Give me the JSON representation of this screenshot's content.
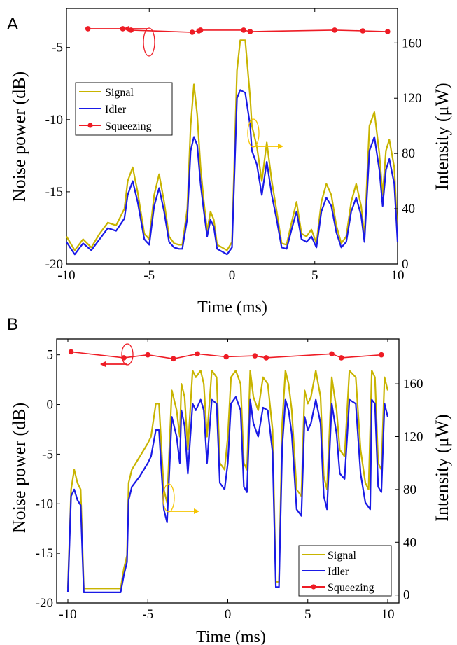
{
  "colors": {
    "signal": "#c8b400",
    "idler": "#1a1ae6",
    "squeezing": "#ee1c25",
    "arrow_right": "#f5c400",
    "axes": "#000000"
  },
  "chart_data": [
    {
      "panel_label": "A",
      "type": "line",
      "xlabel": "Time (ms)",
      "ylabel": "Noise power (dB)",
      "y2label": "Intensity (μW)",
      "xlim": [
        -10,
        10
      ],
      "ylim": [
        -20,
        -2.3
      ],
      "y2lim": [
        0,
        185
      ],
      "xticks": [
        -10,
        -5,
        0,
        5,
        10
      ],
      "yticks": [
        -20,
        -15,
        -10,
        -5
      ],
      "y2ticks": [
        0,
        40,
        80,
        120,
        160
      ],
      "grid": false,
      "legend": {
        "placement": "upper-left",
        "entries": [
          "Signal",
          "Idler",
          "Squeezing"
        ]
      },
      "series": [
        {
          "name": "Signal",
          "axis": "right",
          "x": [
            -10,
            -9.5,
            -9,
            -8.5,
            -8,
            -7.5,
            -7,
            -6.5,
            -6.3,
            -6,
            -5.7,
            -5.3,
            -5,
            -4.7,
            -4.4,
            -4.1,
            -3.8,
            -3.5,
            -3.2,
            -3,
            -2.7,
            -2.5,
            -2.3,
            -2.1,
            -1.9,
            -1.7,
            -1.5,
            -1.3,
            -1.1,
            -0.9,
            -0.6,
            -0.3,
            0,
            0.3,
            0.5,
            0.8,
            1.1,
            1.2,
            1.5,
            1.8,
            2.1,
            2.4,
            2.7,
            3,
            3.3,
            3.6,
            3.9,
            4.2,
            4.5,
            4.8,
            5.1,
            5.4,
            5.7,
            6,
            6.3,
            6.6,
            6.9,
            7.2,
            7.5,
            7.8,
            8,
            8.3,
            8.6,
            8.9,
            9.1,
            9.3,
            9.5,
            9.8,
            10
          ],
          "values": [
            20,
            10,
            18,
            12,
            22,
            30,
            28,
            40,
            60,
            70,
            52,
            22,
            18,
            50,
            65,
            45,
            20,
            15,
            14,
            14,
            40,
            100,
            130,
            108,
            70,
            45,
            24,
            38,
            32,
            14,
            12,
            10,
            16,
            140,
            162,
            162,
            120,
            100,
            85,
            60,
            88,
            60,
            38,
            15,
            14,
            30,
            45,
            22,
            20,
            25,
            15,
            45,
            58,
            50,
            28,
            15,
            20,
            45,
            58,
            42,
            20,
            100,
            110,
            80,
            50,
            82,
            90,
            70,
            20
          ]
        },
        {
          "name": "Idler",
          "axis": "right",
          "x": [
            -10,
            -9.5,
            -9,
            -8.5,
            -8,
            -7.5,
            -7,
            -6.5,
            -6.3,
            -6,
            -5.7,
            -5.3,
            -5,
            -4.7,
            -4.4,
            -4.1,
            -3.8,
            -3.5,
            -3.2,
            -3,
            -2.7,
            -2.5,
            -2.3,
            -2.1,
            -1.9,
            -1.7,
            -1.5,
            -1.3,
            -1.1,
            -0.9,
            -0.6,
            -0.3,
            0,
            0.3,
            0.5,
            0.8,
            1.1,
            1.2,
            1.5,
            1.8,
            2.1,
            2.4,
            2.7,
            3,
            3.3,
            3.6,
            3.9,
            4.2,
            4.5,
            4.8,
            5.1,
            5.4,
            5.7,
            6,
            6.3,
            6.6,
            6.9,
            7.2,
            7.5,
            7.8,
            8,
            8.3,
            8.6,
            8.9,
            9.1,
            9.3,
            9.5,
            9.8,
            10
          ],
          "values": [
            16,
            7,
            15,
            10,
            18,
            26,
            24,
            33,
            50,
            60,
            45,
            18,
            14,
            42,
            55,
            38,
            16,
            12,
            11,
            11,
            33,
            82,
            92,
            86,
            58,
            38,
            20,
            32,
            27,
            11,
            9,
            7,
            12,
            120,
            126,
            124,
            100,
            82,
            72,
            50,
            74,
            50,
            32,
            12,
            11,
            25,
            38,
            18,
            16,
            20,
            12,
            38,
            48,
            42,
            23,
            12,
            16,
            38,
            48,
            35,
            16,
            82,
            92,
            68,
            42,
            68,
            76,
            58,
            16
          ]
        },
        {
          "name": "Squeezing",
          "axis": "left",
          "x": [
            -8.7,
            -6.6,
            -6.1,
            -2.4,
            -2.0,
            -1.9,
            0.7,
            1.1,
            6.2,
            7.9,
            9.4
          ],
          "values": [
            -3.7,
            -3.7,
            -3.8,
            -3.95,
            -3.85,
            -3.8,
            -3.8,
            -3.9,
            -3.8,
            -3.85,
            -3.9
          ]
        }
      ]
    },
    {
      "panel_label": "B",
      "type": "line",
      "xlabel": "Time (ms)",
      "ylabel": "Noise power (dB)",
      "y2label": "Intensity (μW)",
      "xlim": [
        -10.7,
        10.7
      ],
      "ylim": [
        -20,
        6.6
      ],
      "y2lim": [
        -6,
        194
      ],
      "xticks": [
        -10,
        -5,
        0,
        5,
        10
      ],
      "yticks": [
        -20,
        -15,
        -10,
        -5,
        0,
        5
      ],
      "y2ticks": [
        0,
        40,
        80,
        120,
        160
      ],
      "grid": false,
      "legend": {
        "placement": "lower-right",
        "entries": [
          "Signal",
          "Idler",
          "Squeezing"
        ]
      },
      "series": [
        {
          "name": "Signal",
          "axis": "right",
          "x": [
            -10,
            -9.8,
            -9.6,
            -9.4,
            -9.2,
            -9,
            -8,
            -7,
            -6.7,
            -6.5,
            -6.3,
            -6.2,
            -6,
            -5.5,
            -5,
            -4.8,
            -4.5,
            -4.3,
            -4,
            -3.8,
            -3.5,
            -3.2,
            -3,
            -2.9,
            -2.7,
            -2.5,
            -2.2,
            -2,
            -1.7,
            -1.5,
            -1.3,
            -1,
            -0.7,
            -0.5,
            -0.2,
            0,
            0.2,
            0.5,
            0.8,
            1,
            1.2,
            1.4,
            1.6,
            1.9,
            2.2,
            2.5,
            2.8,
            3,
            3.2,
            3.4,
            3.6,
            3.8,
            4,
            4.3,
            4.6,
            4.8,
            5,
            5.2,
            5.5,
            5.8,
            6,
            6.2,
            6.5,
            6.8,
            7,
            7.3,
            7.6,
            8,
            8.3,
            8.6,
            8.8,
            9,
            9.2,
            9.4,
            9.6,
            9.8,
            10
          ],
          "values": [
            5,
            80,
            95,
            85,
            80,
            5,
            5,
            5,
            5,
            20,
            30,
            85,
            95,
            105,
            115,
            120,
            145,
            145,
            80,
            70,
            155,
            140,
            120,
            160,
            150,
            110,
            170,
            165,
            170,
            160,
            120,
            170,
            165,
            100,
            95,
            120,
            165,
            170,
            160,
            100,
            95,
            170,
            150,
            140,
            165,
            160,
            125,
            10,
            10,
            130,
            170,
            160,
            140,
            80,
            75,
            155,
            145,
            150,
            170,
            150,
            90,
            80,
            165,
            140,
            110,
            105,
            170,
            165,
            110,
            85,
            80,
            170,
            165,
            100,
            95,
            165,
            155
          ]
        },
        {
          "name": "Idler",
          "axis": "right",
          "x": [
            -10,
            -9.8,
            -9.6,
            -9.4,
            -9.2,
            -9,
            -8,
            -7,
            -6.7,
            -6.5,
            -6.3,
            -6.2,
            -6,
            -5.5,
            -5,
            -4.8,
            -4.5,
            -4.3,
            -4,
            -3.8,
            -3.5,
            -3.2,
            -3,
            -2.9,
            -2.7,
            -2.5,
            -2.2,
            -2,
            -1.7,
            -1.5,
            -1.3,
            -1,
            -0.7,
            -0.5,
            -0.2,
            0,
            0.2,
            0.5,
            0.8,
            1,
            1.2,
            1.4,
            1.6,
            1.9,
            2.2,
            2.5,
            2.8,
            3,
            3.2,
            3.4,
            3.6,
            3.8,
            4,
            4.3,
            4.6,
            4.8,
            5,
            5.2,
            5.5,
            5.8,
            6,
            6.2,
            6.5,
            6.8,
            7,
            7.3,
            7.6,
            8,
            8.3,
            8.6,
            8.9,
            9,
            9.2,
            9.4,
            9.6,
            9.8,
            10
          ],
          "values": [
            2,
            75,
            80,
            72,
            68,
            2,
            2,
            2,
            2,
            15,
            25,
            72,
            82,
            90,
            100,
            105,
            125,
            125,
            65,
            55,
            135,
            120,
            100,
            140,
            128,
            92,
            145,
            140,
            148,
            140,
            100,
            148,
            145,
            85,
            80,
            100,
            145,
            150,
            140,
            82,
            78,
            148,
            130,
            120,
            142,
            140,
            108,
            6,
            6,
            112,
            148,
            140,
            122,
            65,
            60,
            135,
            125,
            130,
            148,
            130,
            75,
            65,
            145,
            122,
            92,
            88,
            148,
            145,
            92,
            70,
            65,
            148,
            145,
            82,
            78,
            145,
            135
          ]
        },
        {
          "name": "Squeezing",
          "axis": "left",
          "x": [
            -9.8,
            -6.5,
            -5,
            -3.4,
            -1.9,
            -0.1,
            1.7,
            2.4,
            6.5,
            7.1,
            9.6
          ],
          "values": [
            5.3,
            4.7,
            5.0,
            4.6,
            5.1,
            4.8,
            4.9,
            4.7,
            5.1,
            4.7,
            5.0
          ]
        }
      ]
    }
  ]
}
